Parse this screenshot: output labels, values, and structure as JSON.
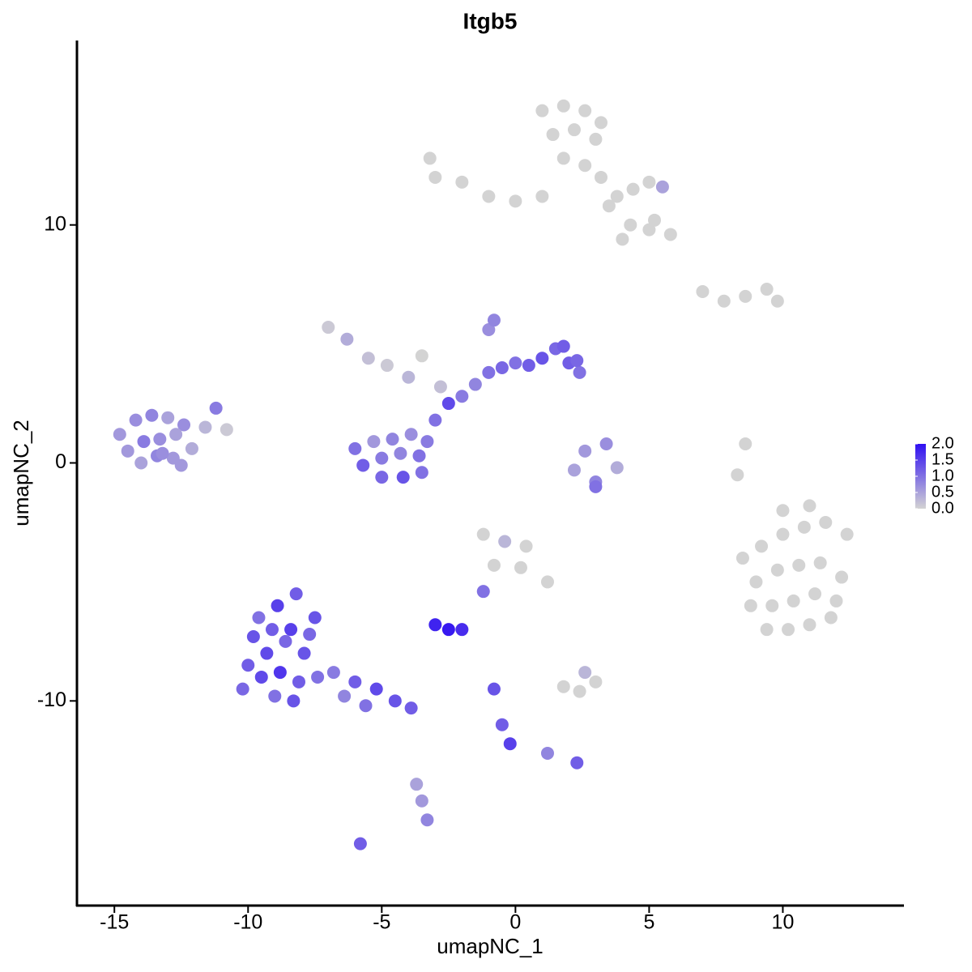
{
  "chart_data": {
    "type": "scatter",
    "title": "Itgb5",
    "x_label": "umapNC_1",
    "y_label": "umapNC_2",
    "xlim": [
      -16.4,
      14.5
    ],
    "ylim": [
      -18.6,
      17.75
    ],
    "xticks": [
      -15,
      -10,
      -5,
      0,
      5,
      10
    ],
    "yticks": [
      -10,
      0,
      10
    ],
    "grid": false,
    "x": [
      -14.8,
      -14.2,
      -13.6,
      -13,
      -12.4,
      -14.5,
      -13.9,
      -13.3,
      -12.7,
      -12.1,
      -14,
      -13.4,
      -12.8,
      -11.6,
      -11.2,
      -10.8,
      -12.5,
      -13.2,
      -10,
      -9.3,
      -8.6,
      -7.9,
      -9.6,
      -8.9,
      -8.2,
      -7.5,
      -10.2,
      -9.5,
      -8.8,
      -8.1,
      -7.4,
      -9.8,
      -9.1,
      -8.4,
      -7.7,
      -9,
      -8.3,
      -6.8,
      -6,
      -5.2,
      -4.5,
      -3.9,
      -6.4,
      -5.6,
      -6,
      -5.3,
      -4.6,
      -3.9,
      -3.3,
      -5.7,
      -5,
      -4.3,
      -3.6,
      -5,
      -4.2,
      -3.5,
      -3,
      -2.5,
      -2,
      -1.5,
      -1,
      -0.5,
      0,
      0.5,
      1,
      1.5,
      2,
      2.4,
      -1,
      -0.8,
      1.8,
      2.3,
      -7,
      -6.3,
      -5.5,
      -4.8,
      -4,
      -3.5,
      -2.8,
      1,
      1.8,
      2.6,
      3.2,
      1.4,
      2.2,
      3,
      1.8,
      2.6,
      3.2,
      3.8,
      4.4,
      5,
      5.5,
      3.5,
      4.3,
      5,
      5.8,
      -3,
      -2,
      -1,
      0,
      1,
      -3.2,
      4,
      5.2,
      8.5,
      9.2,
      10,
      10.8,
      11.6,
      12.4,
      9,
      9.8,
      10.6,
      11.4,
      12.2,
      8.8,
      9.6,
      10.4,
      11.2,
      12,
      9.4,
      10.2,
      11,
      11.8,
      10,
      11,
      2.2,
      3,
      3.8,
      2.6,
      3.4,
      3,
      -3,
      -2.5,
      -2,
      -1.2,
      -1.2,
      -0.4,
      0.4,
      -0.8,
      0.2,
      1.2,
      -0.8,
      -0.5,
      -0.2,
      1.2,
      2.3,
      1.8,
      2.4,
      3,
      2.6,
      -3.5,
      -3.3,
      -3.7,
      -5.8,
      7,
      7.8,
      8.6,
      9.4,
      9.8,
      8.3,
      8.6
    ],
    "values": [
      1.2,
      1.8,
      2,
      1.9,
      1.6,
      0.5,
      0.9,
      1,
      1.2,
      0.6,
      0,
      0.3,
      0.2,
      1.5,
      2.3,
      1.4,
      -0.1,
      0.4,
      -8.5,
      -8,
      -7.5,
      -8,
      -6.5,
      -6,
      -5.5,
      -6.5,
      -9.5,
      -9,
      -8.8,
      -9.2,
      -9,
      -7.3,
      -7,
      -7,
      -7.2,
      -9.8,
      -10,
      -8.8,
      -9.2,
      -9.5,
      -10,
      -10.3,
      -9.8,
      -10.2,
      0.6,
      0.9,
      1,
      1.2,
      0.9,
      -0.1,
      0.2,
      0.4,
      0.3,
      -0.6,
      -0.6,
      -0.4,
      1.8,
      2.5,
      2.8,
      3.3,
      3.8,
      4,
      4.2,
      4.1,
      4.4,
      4.8,
      4.2,
      3.8,
      5.6,
      6,
      4.9,
      4.3,
      5.7,
      5.2,
      4.4,
      4.1,
      3.6,
      4.5,
      3.2,
      14.8,
      15,
      14.8,
      14.3,
      13.8,
      14,
      13.6,
      12.8,
      12.5,
      12,
      11.2,
      11.5,
      11.8,
      11.6,
      10.8,
      10,
      9.8,
      9.6,
      12,
      11.8,
      11.2,
      11,
      11.2,
      12.8,
      9.4,
      10.2,
      -4,
      -3.5,
      -3,
      -2.7,
      -2.5,
      -3,
      -5,
      -4.5,
      -4.3,
      -4.2,
      -4.8,
      -6,
      -6,
      -5.8,
      -5.5,
      -5.8,
      -7,
      -7,
      -6.8,
      -6.5,
      -2,
      -1.8,
      -0.3,
      -0.8,
      -0.2,
      0.5,
      0.8,
      -1,
      -6.8,
      -7,
      -7,
      -5.4,
      -3,
      -3.3,
      -3.5,
      -4.3,
      -4.4,
      -5,
      -9.5,
      -11,
      -11.8,
      -12.2,
      -12.6,
      -9.4,
      -9.6,
      -9.2,
      -8.8,
      -14.2,
      -15,
      -13.5,
      -16,
      7.2,
      6.8,
      7,
      7.3,
      6.8,
      -0.5,
      0.8
    ],
    "color_values": [
      0.6,
      0.7,
      0.8,
      0.5,
      0.7,
      0.6,
      0.9,
      0.7,
      0.5,
      0.4,
      0.5,
      0.8,
      0.6,
      0.3,
      0.9,
      0.1,
      0.6,
      0.7,
      1.2,
      1.4,
      1.1,
      1.3,
      1.0,
      1.5,
      1.2,
      1.3,
      1.1,
      1.4,
      1.6,
      1.2,
      1.0,
      1.3,
      1.2,
      1.5,
      1.1,
      1.0,
      1.3,
      0.9,
      1.2,
      1.4,
      1.3,
      1.2,
      0.8,
      1.0,
      1.0,
      0.6,
      0.8,
      0.7,
      0.9,
      1.2,
      0.9,
      0.8,
      1.0,
      1.1,
      1.3,
      1.0,
      1.0,
      1.4,
      0.9,
      0.8,
      1.0,
      1.1,
      1.0,
      1.2,
      1.3,
      1.1,
      1.2,
      1.0,
      0.7,
      0.8,
      1.2,
      1.1,
      0.1,
      0.4,
      0.2,
      0.1,
      0.3,
      0,
      0.2,
      0,
      0,
      0,
      0,
      0,
      0,
      0,
      0,
      0,
      0,
      0,
      0,
      0,
      0.5,
      0,
      0,
      0,
      0,
      0,
      0,
      0,
      0,
      0,
      0,
      0,
      0,
      0,
      0,
      0,
      0,
      0,
      0,
      0,
      0,
      0,
      0,
      0,
      0,
      0,
      0,
      0,
      0,
      0,
      0,
      0,
      0,
      0,
      0,
      0.5,
      0.8,
      0.4,
      0.6,
      0.7,
      1.0,
      1.8,
      1.9,
      1.7,
      1.0,
      0,
      0.3,
      0,
      0,
      0,
      0,
      1.3,
      1.2,
      1.5,
      0.8,
      1.2,
      0,
      0,
      0,
      0.3,
      0.6,
      0.8,
      0.5,
      1.2,
      0,
      0,
      0,
      0,
      0,
      0,
      0
    ],
    "colorbar": {
      "lim": [
        0,
        2
      ],
      "ticks": [
        {
          "value": 0,
          "label": "0.0"
        },
        0.5,
        {
          "value": 1,
          "label": "1.0"
        },
        1.5,
        {
          "value": 2,
          "label": "2.0"
        }
      ],
      "colors": [
        "#d3d3d3",
        "#2f0ff2"
      ]
    }
  }
}
